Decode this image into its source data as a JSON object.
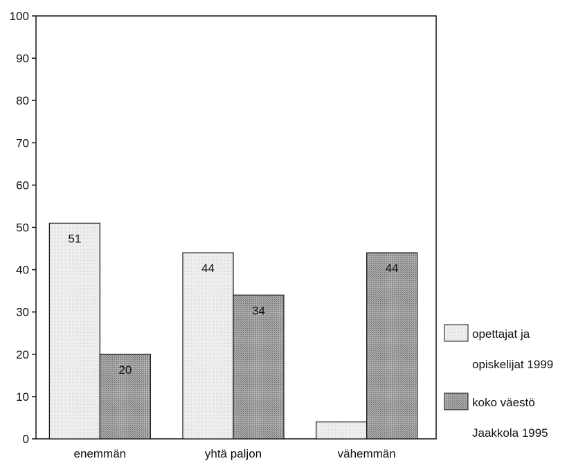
{
  "chart_data": {
    "type": "bar",
    "categories": [
      "enemmän",
      "yhtä paljon",
      "vähemmän"
    ],
    "series": [
      {
        "name": "opettajat ja opiskelijat 1999",
        "legend_lines": [
          "opettajat ja",
          "opiskelijat 1999"
        ],
        "values": [
          51,
          44,
          4
        ],
        "data_labels": [
          "51",
          "44",
          ""
        ],
        "color": "#ececec"
      },
      {
        "name": "koko väestö Jaakkola 1995",
        "legend_lines": [
          "koko väestö",
          "Jaakkola 1995"
        ],
        "values": [
          20,
          34,
          44
        ],
        "data_labels": [
          "20",
          "34",
          "44"
        ],
        "color": "#9b9b9b"
      }
    ],
    "ylim": [
      0,
      100
    ],
    "yticks": [
      0,
      10,
      20,
      30,
      40,
      50,
      60,
      70,
      80,
      90,
      100
    ],
    "grid": false,
    "legend_position": "right",
    "title": "",
    "xlabel": "",
    "ylabel": ""
  }
}
